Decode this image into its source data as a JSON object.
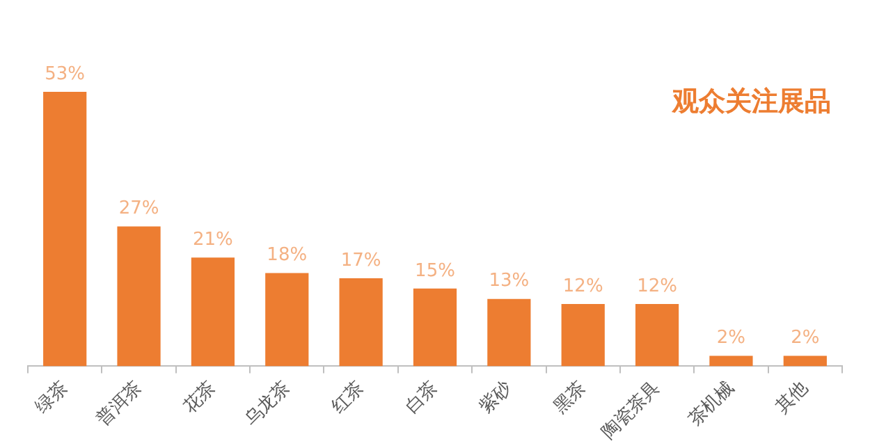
{
  "chart_data": {
    "type": "bar",
    "title": "观众关注展品",
    "categories": [
      "绿茶",
      "普洱茶",
      "花茶",
      "乌龙茶",
      "红茶",
      "白茶",
      "紫砂",
      "黑茶",
      "陶瓷茶具",
      "茶机械",
      "其他"
    ],
    "values": [
      53,
      27,
      21,
      18,
      17,
      15,
      13,
      12,
      12,
      2,
      2
    ],
    "value_labels": [
      "53%",
      "27%",
      "21%",
      "18%",
      "17%",
      "15%",
      "13%",
      "12%",
      "12%",
      "2%",
      "2%"
    ],
    "color": "#ed7d31",
    "tick_labels": "x",
    "legend": false,
    "grid": false
  }
}
